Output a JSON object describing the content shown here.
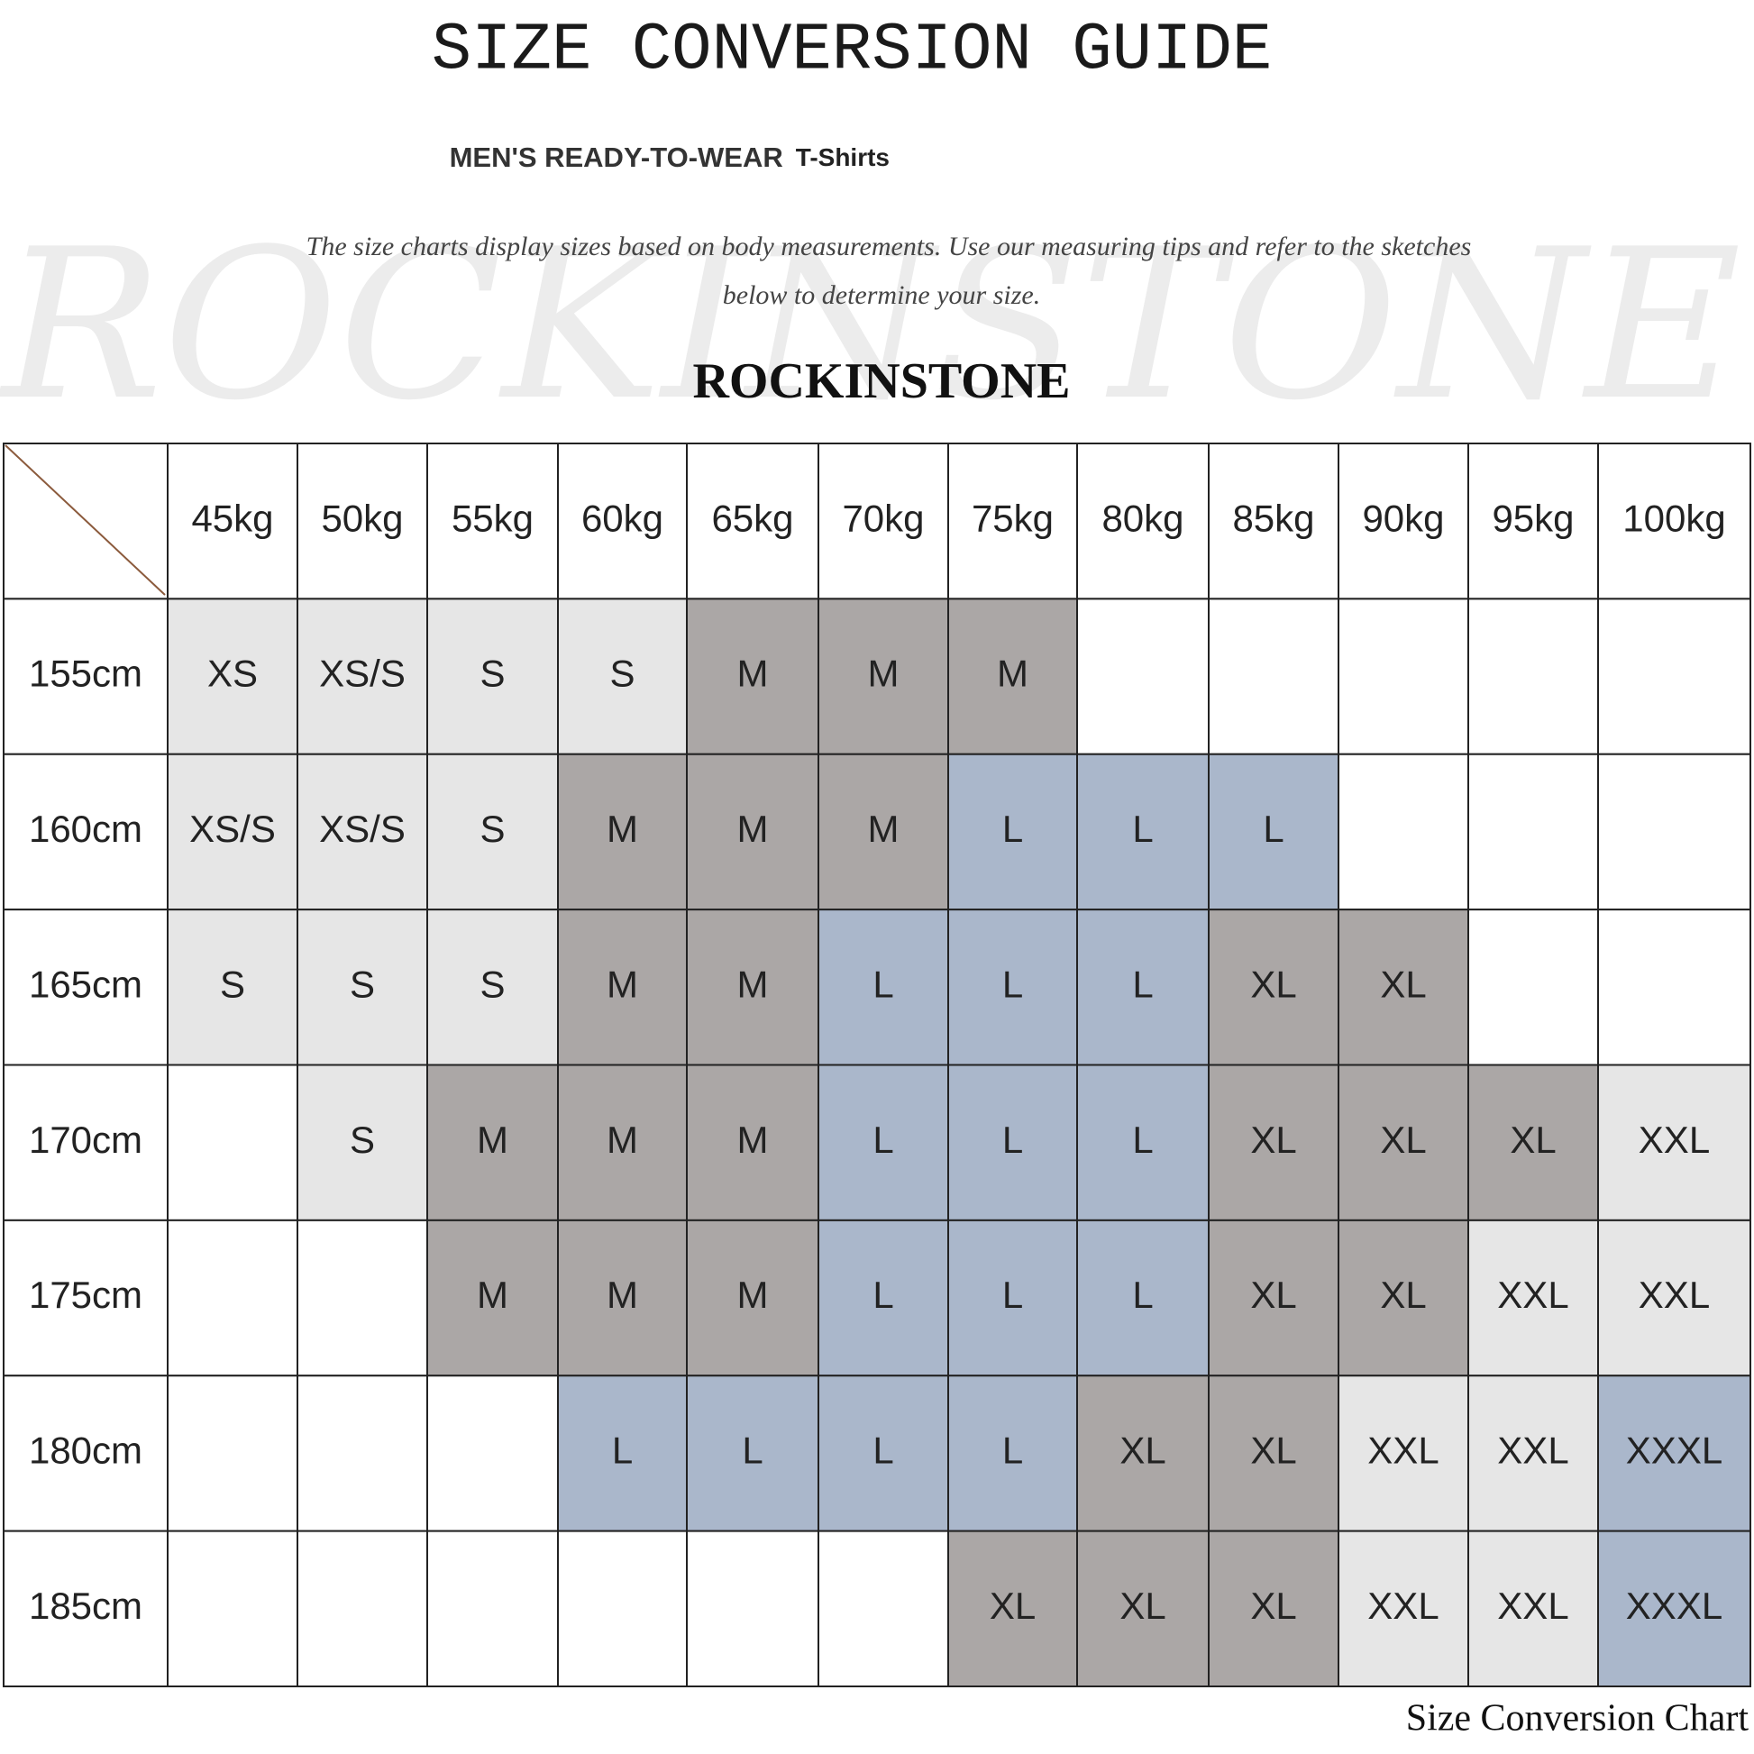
{
  "header": {
    "title": "SIZE CONVERSION GUIDE",
    "subtitle_main": "MEN'S READY-TO-WEAR",
    "subtitle_item": "T-Shirts",
    "description": [
      "The size charts display sizes based on body measurements. Use our measuring tips and refer to the sketches",
      "below to determine your size."
    ],
    "watermark": "ROCKINSTONE",
    "brand": "ROCKINSTONE"
  },
  "table": {
    "columns": [
      "45kg",
      "50kg",
      "55kg",
      "60kg",
      "65kg",
      "70kg",
      "75kg",
      "80kg",
      "85kg",
      "90kg",
      "95kg",
      "100kg"
    ],
    "rows": [
      {
        "label": "155cm",
        "cells": [
          {
            "text": "XS",
            "fill": "#e6e6e6"
          },
          {
            "text": "XS/S",
            "fill": "#e6e6e6"
          },
          {
            "text": "S",
            "fill": "#e6e6e6"
          },
          {
            "text": "S",
            "fill": "#e6e6e6"
          },
          {
            "text": "M",
            "fill": "#aba7a6"
          },
          {
            "text": "M",
            "fill": "#aba7a6"
          },
          {
            "text": "M",
            "fill": "#aba7a6"
          },
          null,
          null,
          null,
          null,
          null
        ]
      },
      {
        "label": "160cm",
        "cells": [
          {
            "text": "XS/S",
            "fill": "#e6e6e6"
          },
          {
            "text": "XS/S",
            "fill": "#e6e6e6"
          },
          {
            "text": "S",
            "fill": "#e6e6e6"
          },
          {
            "text": "M",
            "fill": "#aba7a6"
          },
          {
            "text": "M",
            "fill": "#aba7a6"
          },
          {
            "text": "M",
            "fill": "#aba7a6"
          },
          {
            "text": "L",
            "fill": "#aab7cb"
          },
          {
            "text": "L",
            "fill": "#aab7cb"
          },
          {
            "text": "L",
            "fill": "#aab7cb"
          },
          null,
          null,
          null
        ]
      },
      {
        "label": "165cm",
        "cells": [
          {
            "text": "S",
            "fill": "#e6e6e6"
          },
          {
            "text": "S",
            "fill": "#e6e6e6"
          },
          {
            "text": "S",
            "fill": "#e6e6e6"
          },
          {
            "text": "M",
            "fill": "#aba7a6"
          },
          {
            "text": "M",
            "fill": "#aba7a6"
          },
          {
            "text": "L",
            "fill": "#aab7cb"
          },
          {
            "text": "L",
            "fill": "#aab7cb"
          },
          {
            "text": "L",
            "fill": "#aab7cb"
          },
          {
            "text": "XL",
            "fill": "#aba7a6"
          },
          {
            "text": "XL",
            "fill": "#aba7a6"
          },
          null,
          null
        ]
      },
      {
        "label": "170cm",
        "cells": [
          null,
          {
            "text": "S",
            "fill": "#e6e6e6"
          },
          {
            "text": "M",
            "fill": "#aba7a6"
          },
          {
            "text": "M",
            "fill": "#aba7a6"
          },
          {
            "text": "M",
            "fill": "#aba7a6"
          },
          {
            "text": "L",
            "fill": "#aab7cb"
          },
          {
            "text": "L",
            "fill": "#aab7cb"
          },
          {
            "text": "L",
            "fill": "#aab7cb"
          },
          {
            "text": "XL",
            "fill": "#aba7a6"
          },
          {
            "text": "XL",
            "fill": "#aba7a6"
          },
          {
            "text": "XL",
            "fill": "#aba7a6"
          },
          {
            "text": "XXL",
            "fill": "#e6e6e6"
          }
        ]
      },
      {
        "label": "175cm",
        "cells": [
          null,
          null,
          {
            "text": "M",
            "fill": "#aba7a6"
          },
          {
            "text": "M",
            "fill": "#aba7a6"
          },
          {
            "text": "M",
            "fill": "#aba7a6"
          },
          {
            "text": "L",
            "fill": "#aab7cb"
          },
          {
            "text": "L",
            "fill": "#aab7cb"
          },
          {
            "text": "L",
            "fill": "#aab7cb"
          },
          {
            "text": "XL",
            "fill": "#aba7a6"
          },
          {
            "text": "XL",
            "fill": "#aba7a6"
          },
          {
            "text": "XXL",
            "fill": "#e6e6e6"
          },
          {
            "text": "XXL",
            "fill": "#e6e6e6"
          }
        ]
      },
      {
        "label": "180cm",
        "cells": [
          null,
          null,
          null,
          {
            "text": "L",
            "fill": "#aab7cb"
          },
          {
            "text": "L",
            "fill": "#aab7cb"
          },
          {
            "text": "L",
            "fill": "#aab7cb"
          },
          {
            "text": "L",
            "fill": "#aab7cb"
          },
          {
            "text": "XL",
            "fill": "#aba7a6"
          },
          {
            "text": "XL",
            "fill": "#aba7a6"
          },
          {
            "text": "XXL",
            "fill": "#e6e6e6"
          },
          {
            "text": "XXL",
            "fill": "#e6e6e6"
          },
          {
            "text": "XXXL",
            "fill": "#aab7cb"
          }
        ]
      },
      {
        "label": "185cm",
        "cells": [
          null,
          null,
          null,
          null,
          null,
          null,
          {
            "text": "XL",
            "fill": "#aba7a6"
          },
          {
            "text": "XL",
            "fill": "#aba7a6"
          },
          {
            "text": "XL",
            "fill": "#aba7a6"
          },
          {
            "text": "XXL",
            "fill": "#e6e6e6"
          },
          {
            "text": "XXL",
            "fill": "#e6e6e6"
          },
          {
            "text": "XXXL",
            "fill": "#aab7cb"
          }
        ]
      }
    ]
  },
  "footer": {
    "caption": "Size Conversion Chart"
  }
}
